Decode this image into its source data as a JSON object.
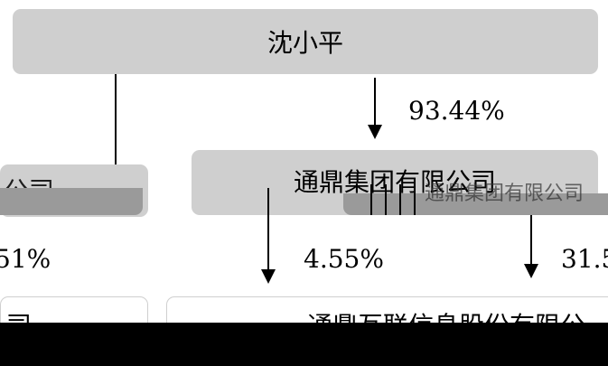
{
  "nodes": {
    "top_person": "沈小平",
    "middle_company": "通鼎集团有限公司",
    "left_partial": "公司",
    "right_partial": "通鼎集团有限公司",
    "bottom_left_partial": "司",
    "bottom_right_partial": "通鼎互联信息股份有限公"
  },
  "edges": {
    "top_to_middle_pct": "93.44%",
    "left_pct_partial": "51%",
    "middle_to_bottom_pct": "4.55%",
    "right_to_bottom_pct_partial": "31.5"
  }
}
